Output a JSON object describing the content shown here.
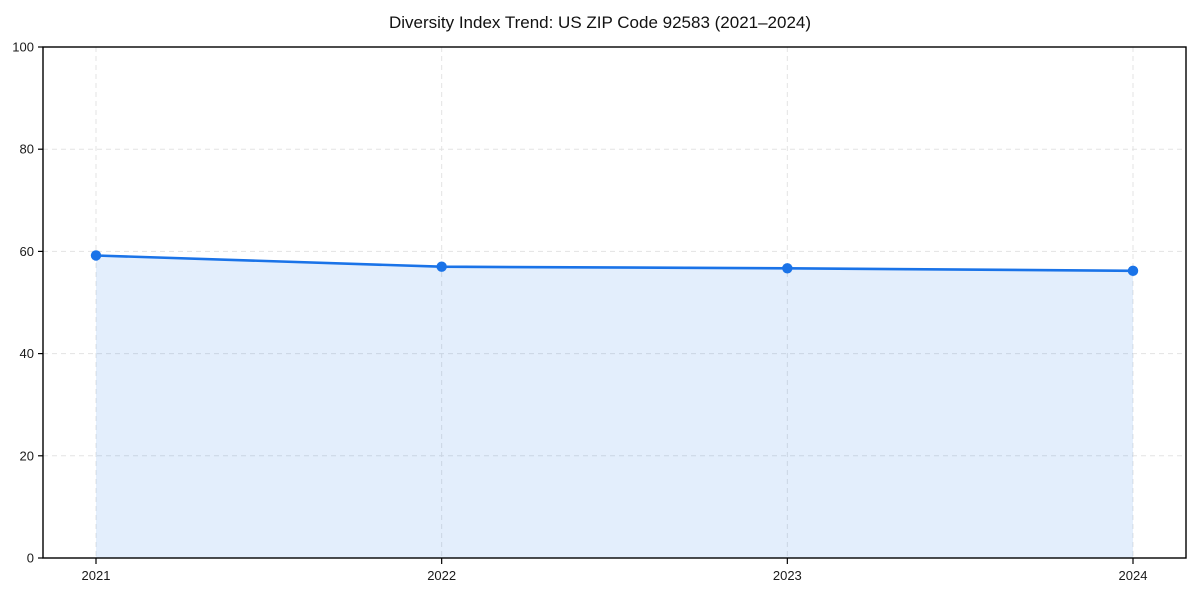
{
  "chart_data": {
    "type": "area",
    "title": "Diversity Index Trend: US ZIP Code 92583 (2021–2024)",
    "categories": [
      "2021",
      "2022",
      "2023",
      "2024"
    ],
    "series": [
      {
        "name": "Diversity Index",
        "values": [
          59.2,
          57.0,
          56.7,
          56.2
        ]
      }
    ],
    "xlabel": "",
    "ylabel": "",
    "ylim": [
      0,
      100
    ],
    "yticks": [
      0,
      20,
      40,
      60,
      80,
      100
    ],
    "grid": true,
    "grid_style": "dashed",
    "legend_position": "none",
    "markers": true,
    "colors": {
      "line": "#1a73e8",
      "marker": "#1a73e8",
      "fill": "#1a73e8",
      "fill_opacity": 0.12,
      "grid": "#e3e3e3",
      "axis": "#000000",
      "tick_label": "#1a1a1a",
      "title": "#111111",
      "background": "#ffffff"
    }
  }
}
